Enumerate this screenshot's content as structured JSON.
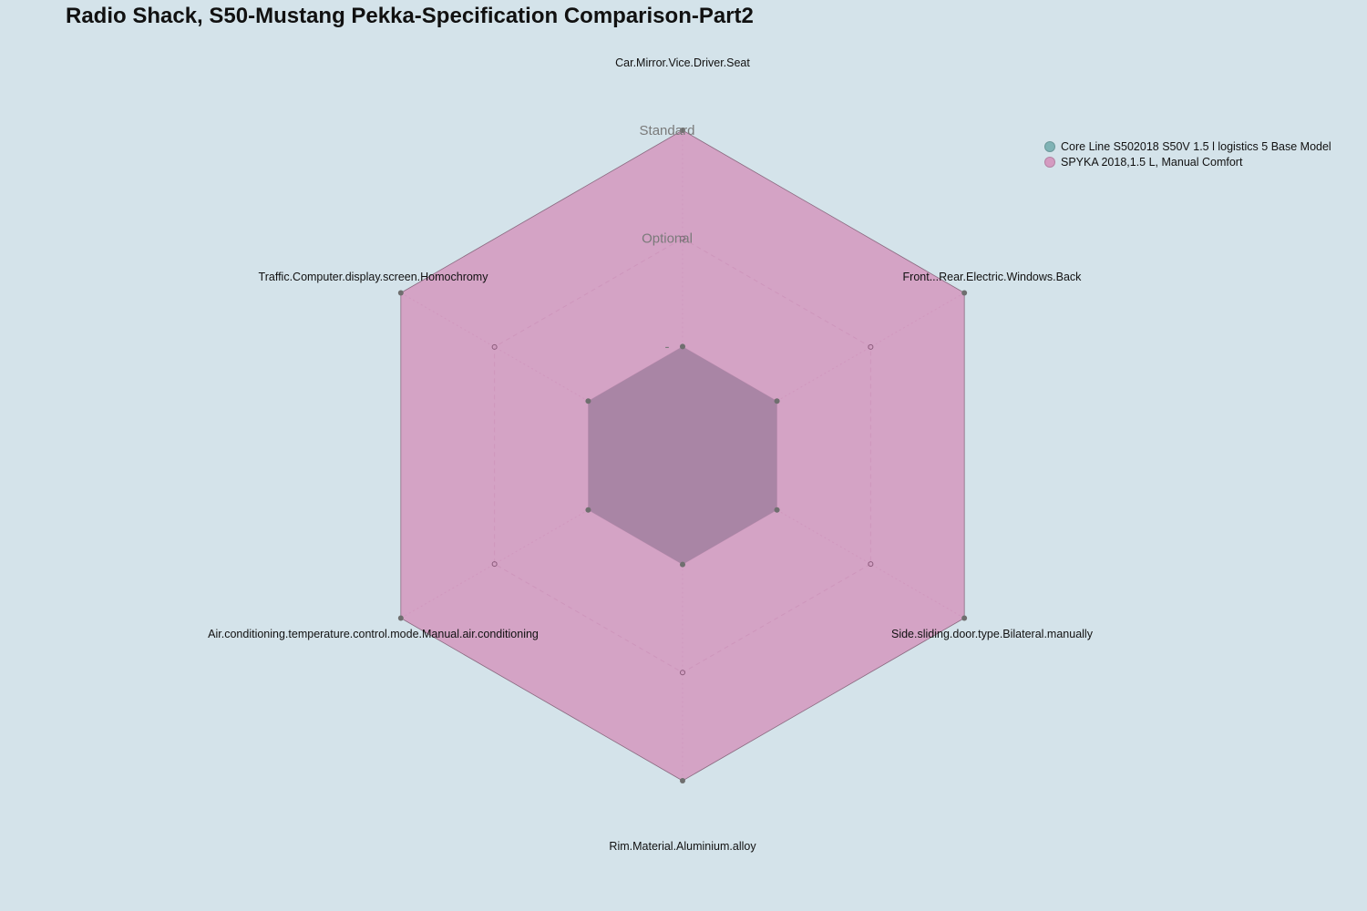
{
  "chart_data": {
    "type": "radar",
    "title": "Radio Shack, S50-Mustang Pekka-Specification Comparison-Part2",
    "axes": [
      "Car.Mirror.Vice.Driver.Seat",
      "Front...Rear.Electric.Windows.Back",
      "Side.sliding.door.type.Bilateral.manually",
      "Rim.Material.Aluminium.alloy",
      "Air.conditioning.temperature.control.mode.Manual.air.conditioning",
      "Traffic.Computer.display.screen.Homochromy"
    ],
    "levels": [
      "-",
      "Optional",
      "Standard"
    ],
    "series": [
      {
        "name": "Core Line S502018 S50V 1.5 l logistics 5 Base Model",
        "values": [
          "-",
          "-",
          "-",
          "-",
          "-",
          "-"
        ],
        "color": "#7fb3b5"
      },
      {
        "name": "SPYKA 2018,1.5 L, Manual Comfort",
        "values": [
          "Standard",
          "Standard",
          "Standard",
          "Standard",
          "Standard",
          "Standard"
        ],
        "color": "#d49bc1"
      }
    ],
    "legend_position": "top-right",
    "grid": true
  }
}
